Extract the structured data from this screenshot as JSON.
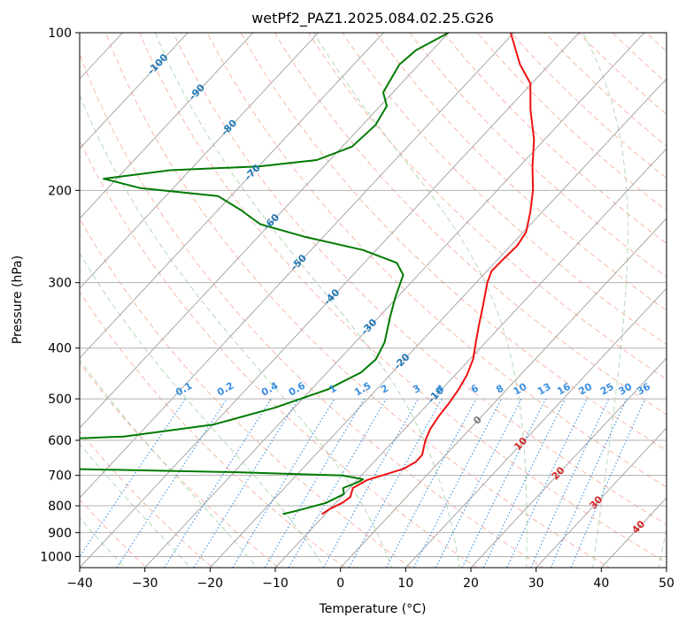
{
  "chart_data": {
    "type": "skew-t log-p",
    "title": "wetPf2_PAZ1.2025.084.02.25.G26",
    "xlabel": "Temperature (°C)",
    "ylabel": "Pressure (hPa)",
    "xlim": [
      -40,
      50
    ],
    "ylim": [
      1050,
      100
    ],
    "skew_degC_per_decade": 75,
    "x_ticks": [
      -40,
      -30,
      -20,
      -10,
      0,
      10,
      20,
      30,
      40,
      50
    ],
    "x_tick_labels": [
      "−40",
      "−30",
      "−20",
      "−10",
      "0",
      "10",
      "20",
      "30",
      "40",
      "50"
    ],
    "y_ticks": [
      100,
      200,
      300,
      400,
      500,
      600,
      700,
      800,
      900,
      1000
    ],
    "y_tick_labels": [
      "100",
      "200",
      "300",
      "400",
      "500",
      "600",
      "700",
      "800",
      "900",
      "1000"
    ],
    "grid": true,
    "isotherms_degC": [
      -200,
      -190,
      -180,
      -170,
      -160,
      -150,
      -140,
      -130,
      -120,
      -110,
      -100,
      -90,
      -80,
      -70,
      -60,
      -50,
      -40,
      -30,
      -20,
      -10,
      0,
      10,
      20,
      30,
      40,
      50
    ],
    "isotherm_labels": [
      {
        "t": -100,
        "p": 115,
        "text": "-100"
      },
      {
        "t": -90,
        "p": 130,
        "text": "-90"
      },
      {
        "t": -80,
        "p": 152,
        "text": "-80"
      },
      {
        "t": -70,
        "p": 185,
        "text": "-70"
      },
      {
        "t": -60,
        "p": 230,
        "text": "-60"
      },
      {
        "t": -50,
        "p": 275,
        "text": "-50"
      },
      {
        "t": -40,
        "p": 320,
        "text": "-40"
      },
      {
        "t": -30,
        "p": 365,
        "text": "-30"
      },
      {
        "t": -20,
        "p": 425,
        "text": "-20"
      },
      {
        "t": -10,
        "p": 492,
        "text": "-10"
      },
      {
        "t": 0,
        "p": 550,
        "text": "0"
      },
      {
        "t": 10,
        "p": 610,
        "text": "10"
      },
      {
        "t": 20,
        "p": 695,
        "text": "20"
      },
      {
        "t": 30,
        "p": 790,
        "text": "30"
      },
      {
        "t": 40,
        "p": 880,
        "text": "40"
      }
    ],
    "mixing_ratio_g_per_kg": [
      0.1,
      0.2,
      0.4,
      0.6,
      1,
      1.5,
      2,
      3,
      4,
      6,
      8,
      10,
      13,
      16,
      20,
      25,
      30,
      36
    ],
    "mixing_ratio_labels": [
      "0.1",
      "0.2",
      "0.4",
      "0.6",
      "1",
      "1.5",
      "2",
      "3",
      "4",
      "6",
      "8",
      "10",
      "13",
      "16",
      "20",
      "25",
      "30",
      "36"
    ],
    "dry_adiabats_theta_K": [
      230,
      240,
      250,
      260,
      270,
      280,
      290,
      300,
      310,
      320,
      330,
      340,
      350,
      360,
      370,
      380,
      390,
      400,
      410,
      420,
      430,
      440,
      450,
      460,
      470,
      480,
      490,
      500
    ],
    "moist_adiabats_start_degC": [
      -30,
      -20,
      -10,
      0,
      10,
      20,
      30,
      40,
      50
    ],
    "series": [
      {
        "name": "temperature",
        "color": "#ee1111",
        "points": [
          [
            830,
            -10.5
          ],
          [
            810,
            -10
          ],
          [
            790,
            -9
          ],
          [
            770,
            -8.6
          ],
          [
            740,
            -9.5
          ],
          [
            715,
            -8.5
          ],
          [
            700,
            -6.8
          ],
          [
            680,
            -4.5
          ],
          [
            660,
            -3.6
          ],
          [
            640,
            -3.6
          ],
          [
            620,
            -4.4
          ],
          [
            600,
            -5.2
          ],
          [
            570,
            -6.1
          ],
          [
            540,
            -6.6
          ],
          [
            510,
            -6.9
          ],
          [
            480,
            -7.4
          ],
          [
            450,
            -8.2
          ],
          [
            420,
            -9.5
          ],
          [
            390,
            -11.5
          ],
          [
            360,
            -13.6
          ],
          [
            330,
            -15.8
          ],
          [
            300,
            -18.3
          ],
          [
            285,
            -19.3
          ],
          [
            270,
            -19.2
          ],
          [
            255,
            -19
          ],
          [
            240,
            -19.6
          ],
          [
            220,
            -21.8
          ],
          [
            200,
            -24.5
          ],
          [
            180,
            -28
          ],
          [
            160,
            -31.6
          ],
          [
            140,
            -36.5
          ],
          [
            125,
            -40.2
          ],
          [
            115,
            -44.5
          ],
          [
            100,
            -50.5
          ]
        ]
      },
      {
        "name": "dewpoint",
        "color": "#007a00",
        "points": [
          [
            830,
            -16.5
          ],
          [
            815,
            -14.5
          ],
          [
            790,
            -11.5
          ],
          [
            760,
            -10
          ],
          [
            740,
            -11
          ],
          [
            720,
            -9.5
          ],
          [
            712,
            -9.2
          ],
          [
            700,
            -13
          ],
          [
            690,
            -30
          ],
          [
            675,
            -70
          ],
          [
            665,
            -95
          ],
          [
            655,
            -200
          ],
          [
            615,
            -200
          ],
          [
            610,
            -80
          ],
          [
            590,
            -52
          ],
          [
            560,
            -40
          ],
          [
            520,
            -33
          ],
          [
            480,
            -27.5
          ],
          [
            445,
            -24.8
          ],
          [
            420,
            -24.4
          ],
          [
            390,
            -25.5
          ],
          [
            350,
            -28.2
          ],
          [
            320,
            -30.3
          ],
          [
            290,
            -32.3
          ],
          [
            275,
            -35
          ],
          [
            260,
            -42
          ],
          [
            245,
            -53
          ],
          [
            232,
            -61.5
          ],
          [
            218,
            -66.5
          ],
          [
            205,
            -72
          ],
          [
            198,
            -85
          ],
          [
            190,
            -92
          ],
          [
            183,
            -83
          ],
          [
            180,
            -70
          ],
          [
            175,
            -62
          ],
          [
            165,
            -58.5
          ],
          [
            150,
            -58
          ],
          [
            138,
            -59
          ],
          [
            130,
            -61.5
          ],
          [
            115,
            -63
          ],
          [
            108,
            -62.5
          ],
          [
            100,
            -60
          ]
        ]
      }
    ]
  }
}
